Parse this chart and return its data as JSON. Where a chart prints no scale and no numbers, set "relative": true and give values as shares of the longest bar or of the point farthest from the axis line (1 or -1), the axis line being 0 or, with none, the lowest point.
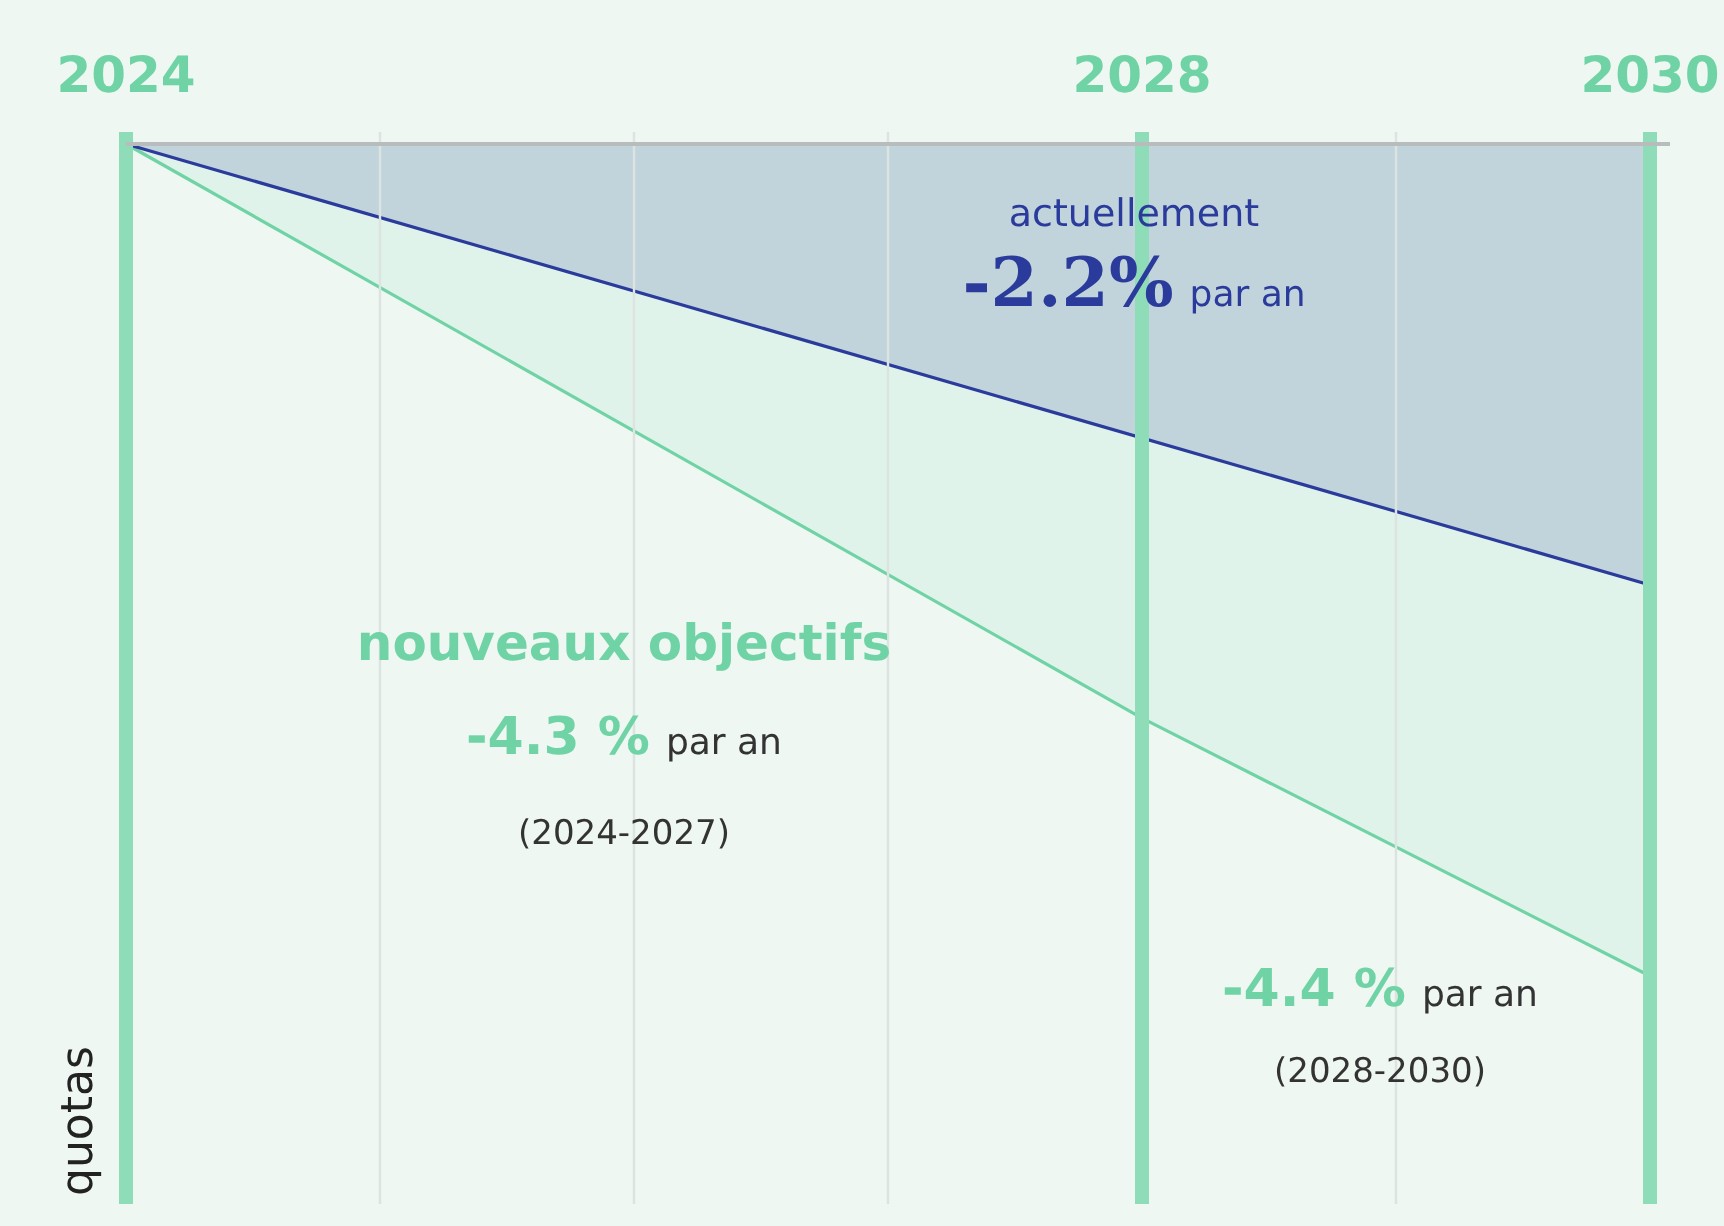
{
  "chart_data": {
    "type": "area",
    "relative": true,
    "ylabel": "quotas",
    "x": [
      2024,
      2028,
      2030
    ],
    "xlim": [
      2024,
      2030
    ],
    "xticks": [
      2024,
      {
        "value": 2025,
        "label": null
      },
      {
        "value": 2026,
        "label": null
      },
      {
        "value": 2027,
        "label": null
      },
      2028,
      {
        "value": 2029,
        "label": null
      },
      2030
    ],
    "grid": "x",
    "series": [
      {
        "color": "#6fd3a5",
        "values": [
          0,
          -0.69,
          -1
        ]
      },
      {
        "color": "#2a3b9c",
        "x": [
          2024,
          2030
        ],
        "values": [
          0,
          -0.53
        ]
      }
    ],
    "ref_lines": [
      {
        "axis": "x",
        "value": 2024,
        "color": "#8fdcb9"
      },
      {
        "axis": "x",
        "value": 2028,
        "color": "#8fdcb9"
      },
      {
        "axis": "x",
        "value": 2030,
        "color": "#8fdcb9"
      }
    ],
    "annotations": [
      "actuellement",
      "-2.2% par an",
      "nouveaux objectifs",
      "-4.3 % par an",
      "(2024-2027)",
      "-4.4 % par an",
      "(2028-2030)"
    ]
  }
}
